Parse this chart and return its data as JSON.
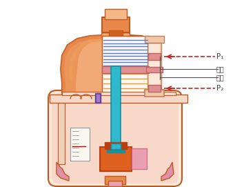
{
  "bg_color": "#ffffff",
  "body_orange": "#e8884a",
  "body_orange_light": "#f5b888",
  "body_orange_dark": "#d06020",
  "body_outline": "#c05820",
  "body_inner_light": "#fad8c0",
  "vessel_bg": "#fce8d8",
  "cylinder_outer": "#f0c8a8",
  "cylinder_outline": "#c08060",
  "cylinder_inner": "#fce8d8",
  "piston_pink": "#e09090",
  "piston_outline": "#c06060",
  "spring_blue": "#5080cc",
  "spring_orange": "#e0a030",
  "stem_cyan": "#30b8cc",
  "stem_dark": "#1890a0",
  "valve_orange": "#e06020",
  "valve_dark": "#b84010",
  "pink_part": "#e8a0b0",
  "pink_part2": "#e090a8",
  "purple": "#8858b0",
  "purple_light": "#a878c8",
  "gauge_bg": "#f8f8f0",
  "gauge_border": "#999999",
  "arrow_red": "#cc2020",
  "line_dark": "#505050",
  "text_dark": "#404040",
  "label_p1": "P₁",
  "label_p2": "P₂",
  "label_piston": "活塞",
  "label_cylinder": "气缸"
}
